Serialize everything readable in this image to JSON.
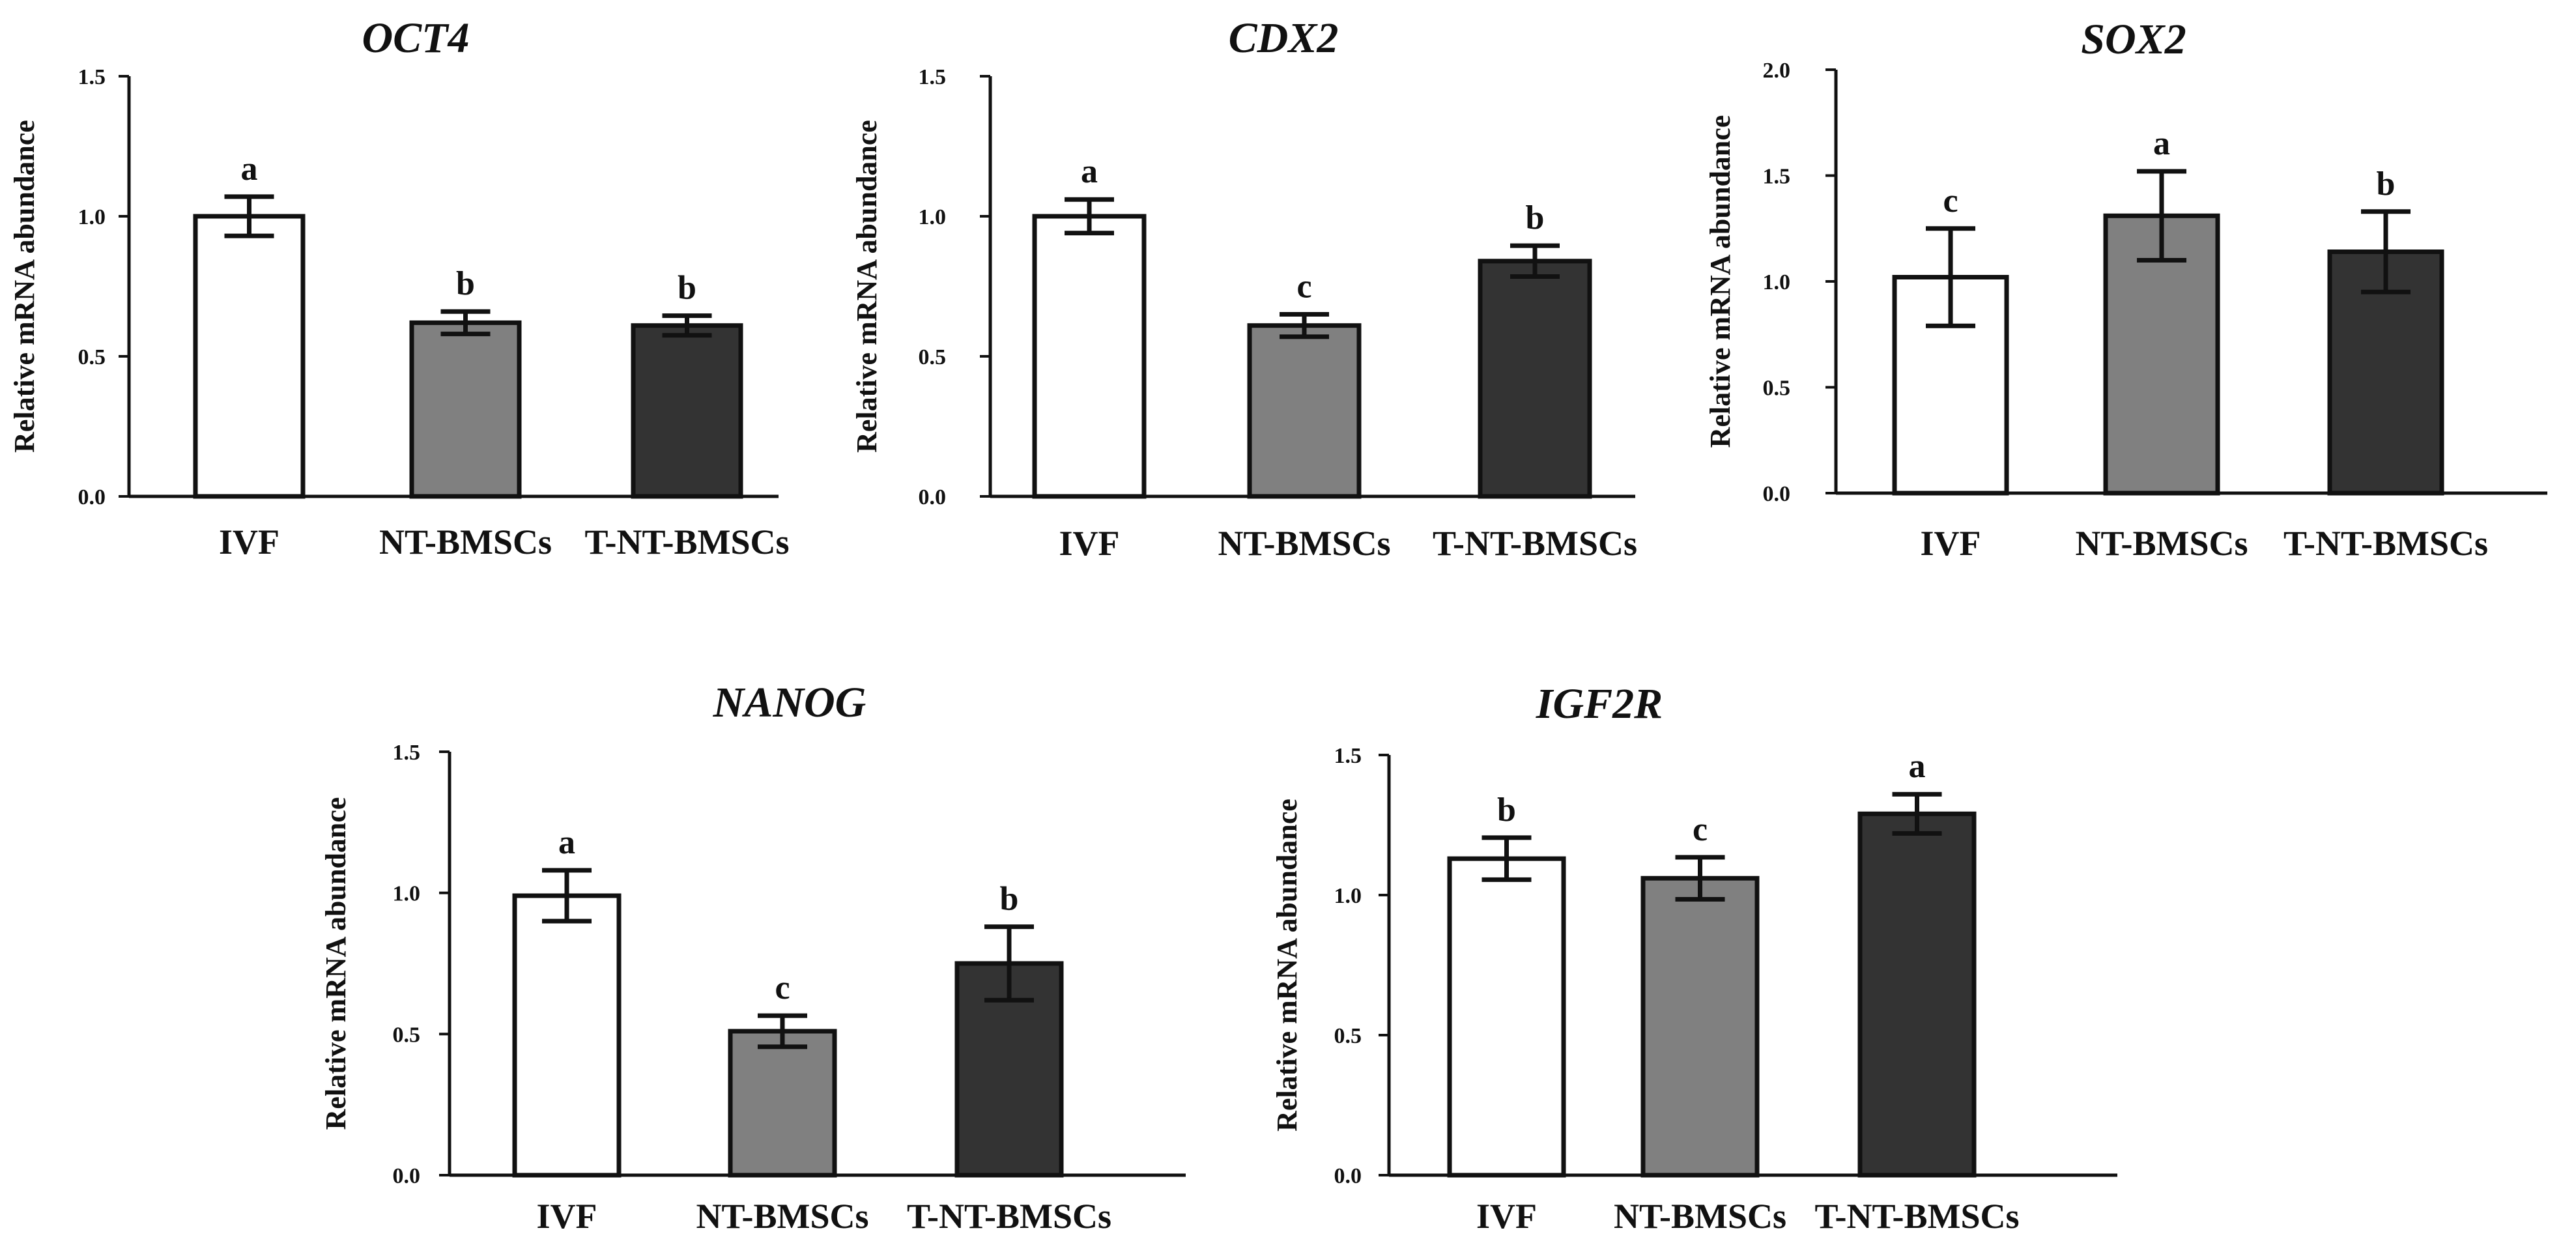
{
  "figure": {
    "colors": {
      "IVF": "#ffffff",
      "NT-BMSCs": "#808080",
      "T-NT-BMSCs": "#333333",
      "stroke": "#111111"
    }
  },
  "chart_data": [
    {
      "type": "bar",
      "title": "OCT4",
      "ylabel": "Relative mRNA abundance",
      "xlabel": "",
      "ylim": [
        0,
        1.5
      ],
      "yticks": [
        "0.0",
        "0.5",
        "1.0",
        "1.5"
      ],
      "categories": [
        "IVF",
        "NT-BMSCs",
        "T-NT-BMSCs"
      ],
      "values": [
        1.0,
        0.62,
        0.61
      ],
      "errors": [
        0.07,
        0.04,
        0.035
      ],
      "labels": [
        "a",
        "b",
        "b"
      ]
    },
    {
      "type": "bar",
      "title": "CDX2",
      "ylabel": "Relative mRNA abundance",
      "xlabel": "",
      "ylim": [
        0,
        1.5
      ],
      "yticks": [
        "0.0",
        "0.5",
        "1.0",
        "1.5"
      ],
      "categories": [
        "IVF",
        "NT-BMSCs",
        "T-NT-BMSCs"
      ],
      "values": [
        1.0,
        0.61,
        0.84
      ],
      "errors": [
        0.06,
        0.04,
        0.055
      ],
      "labels": [
        "a",
        "c",
        "b"
      ]
    },
    {
      "type": "bar",
      "title": "SOX2",
      "ylabel": "Relative mRNA abundance",
      "xlabel": "",
      "ylim": [
        0,
        2.0
      ],
      "yticks": [
        "0.0",
        "0.5",
        "1.0",
        "1.5",
        "2.0"
      ],
      "categories": [
        "IVF",
        "NT-BMSCs",
        "T-NT-BMSCs"
      ],
      "values": [
        1.02,
        1.31,
        1.14
      ],
      "errors": [
        0.23,
        0.21,
        0.19
      ],
      "labels": [
        "c",
        "a",
        "b"
      ]
    },
    {
      "type": "bar",
      "title": "NANOG",
      "ylabel": "Relative mRNA abundance",
      "xlabel": "",
      "ylim": [
        0,
        1.5
      ],
      "yticks": [
        "0.0",
        "0.5",
        "1.0",
        "1.5"
      ],
      "categories": [
        "IVF",
        "NT-BMSCs",
        "T-NT-BMSCs"
      ],
      "values": [
        0.99,
        0.51,
        0.75
      ],
      "errors": [
        0.09,
        0.055,
        0.13
      ],
      "labels": [
        "a",
        "c",
        "b"
      ]
    },
    {
      "type": "bar",
      "title": "IGF2R",
      "ylabel": "Relative mRNA abundance",
      "xlabel": "",
      "ylim": [
        0,
        1.5
      ],
      "yticks": [
        "0.0",
        "0.5",
        "1.0",
        "1.5"
      ],
      "categories": [
        "IVF",
        "NT-BMSCs",
        "T-NT-BMSCs"
      ],
      "values": [
        1.13,
        1.06,
        1.29
      ],
      "errors": [
        0.075,
        0.075,
        0.07
      ],
      "labels": [
        "b",
        "c",
        "a"
      ]
    }
  ]
}
